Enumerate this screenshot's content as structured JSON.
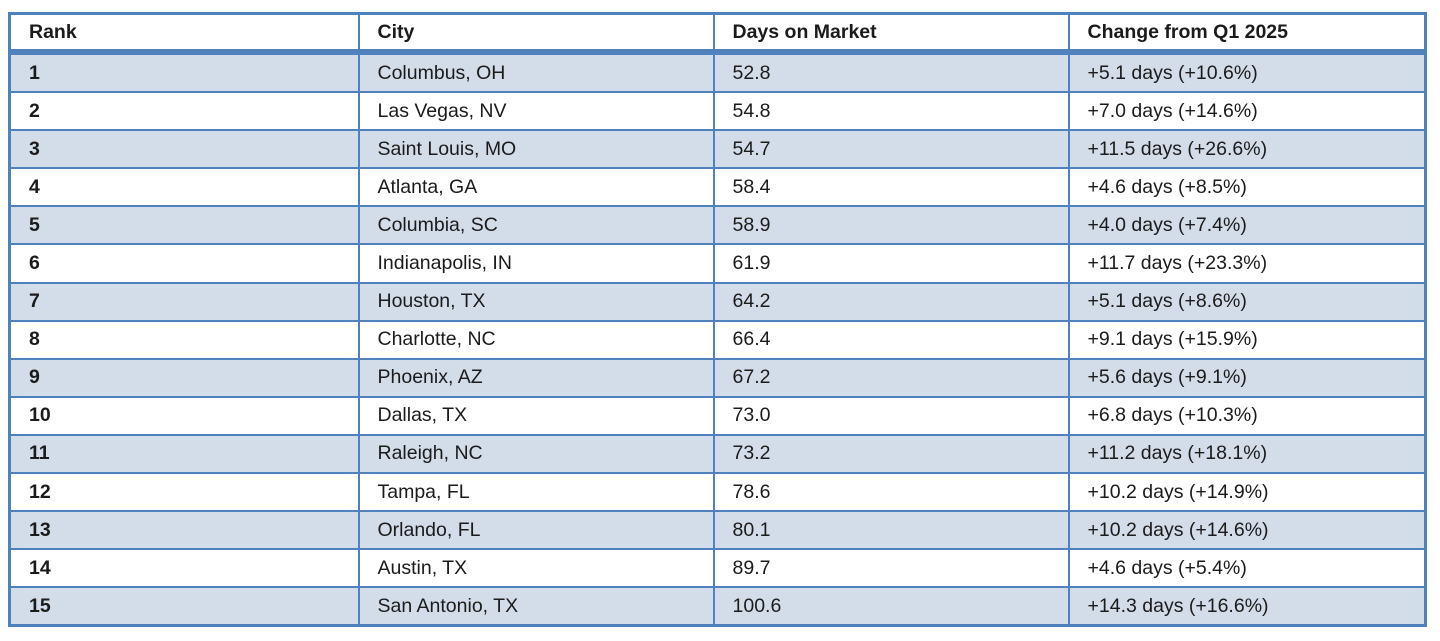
{
  "chart_data": {
    "type": "table",
    "columns": [
      "Rank",
      "City",
      "Days on Market",
      "Change from Q1 2025"
    ],
    "rows": [
      [
        "1",
        "Columbus, OH",
        "52.8",
        "+5.1 days (+10.6%)"
      ],
      [
        "2",
        "Las Vegas, NV",
        "54.8",
        "+7.0 days (+14.6%)"
      ],
      [
        "3",
        "Saint Louis, MO",
        "54.7",
        "+11.5 days (+26.6%)"
      ],
      [
        "4",
        "Atlanta, GA",
        "58.4",
        "+4.6 days (+8.5%)"
      ],
      [
        "5",
        "Columbia, SC",
        "58.9",
        "+4.0 days (+7.4%)"
      ],
      [
        "6",
        "Indianapolis, IN",
        "61.9",
        "+11.7 days (+23.3%)"
      ],
      [
        "7",
        "Houston, TX",
        "64.2",
        "+5.1 days (+8.6%)"
      ],
      [
        "8",
        "Charlotte, NC",
        "66.4",
        "+9.1 days (+15.9%)"
      ],
      [
        "9",
        "Phoenix, AZ",
        "67.2",
        "+5.6 days (+9.1%)"
      ],
      [
        "10",
        "Dallas, TX",
        "73.0",
        "+6.8 days (+10.3%)"
      ],
      [
        "11",
        "Raleigh, NC",
        "73.2",
        "+11.2 days (+18.1%)"
      ],
      [
        "12",
        "Tampa, FL",
        "78.6",
        "+10.2 days (+14.9%)"
      ],
      [
        "13",
        "Orlando, FL",
        "80.1",
        "+10.2 days (+14.6%)"
      ],
      [
        "14",
        "Austin, TX",
        "89.7",
        "+4.6 days (+5.4%)"
      ],
      [
        "15",
        "San Antonio, TX",
        "100.6",
        "+14.3 days (+16.6%)"
      ]
    ],
    "layout": {
      "banding": "odd-rows-shaded",
      "header_style": "white-bold-with-thick-accent-underline"
    },
    "colors": {
      "border": "#4f81bd",
      "band_fill": "#d3dce9",
      "header_background": "#ffffff",
      "text": "#1b1b1b"
    }
  }
}
